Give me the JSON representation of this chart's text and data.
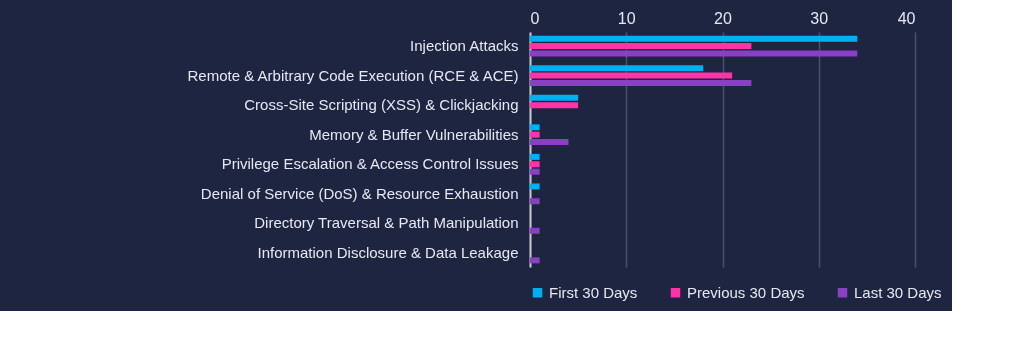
{
  "chart_data": {
    "type": "bar",
    "orientation": "horizontal",
    "categories": [
      "Injection Attacks",
      "Remote & Arbitrary Code Execution (RCE & ACE)",
      "Cross-Site Scripting (XSS) & Clickjacking",
      "Memory & Buffer Vulnerabilities",
      "Privilege Escalation & Access Control Issues",
      "Denial of Service (DoS) & Resource Exhaustion",
      "Directory Traversal & Path Manipulation",
      "Information Disclosure & Data Leakage"
    ],
    "series": [
      {
        "name": "First 30 Days",
        "color": "#00b0f0",
        "values": [
          34,
          18,
          5,
          1,
          1,
          1,
          0,
          0
        ]
      },
      {
        "name": "Previous 30 Days",
        "color": "#ff33a8",
        "values": [
          23,
          21,
          5,
          1,
          1,
          0,
          0,
          0
        ]
      },
      {
        "name": "Last 30 Days",
        "color": "#8a40c4",
        "values": [
          34,
          23,
          0,
          4,
          1,
          1,
          1,
          1
        ]
      }
    ],
    "xlim": [
      0,
      40
    ],
    "xticks": [
      0,
      10,
      20,
      30,
      40
    ],
    "grid": "x",
    "legend": "bottom"
  }
}
